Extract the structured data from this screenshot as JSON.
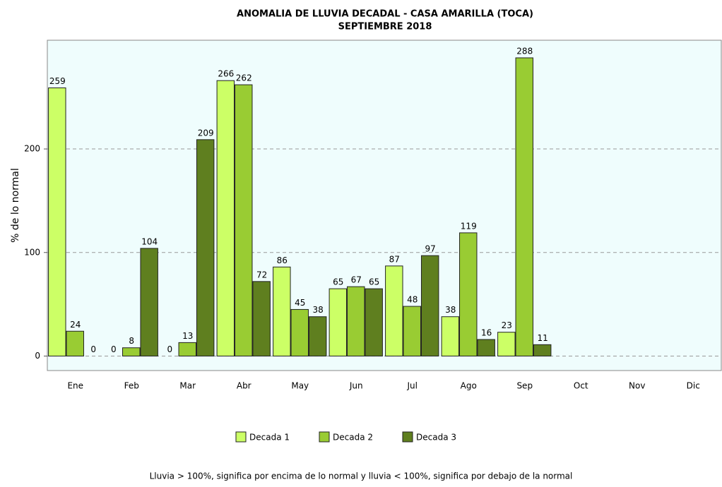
{
  "chart_data": {
    "type": "bar",
    "title": "ANOMALIA DE LLUVIA DECADAL - CASA AMARILLA (TOCA)",
    "subtitle": "SEPTIEMBRE 2018",
    "y_label": "% de lo normal",
    "note": "Lluvia > 100%, significa por encima de lo normal y lluvia < 100%, significa por debajo de la normal",
    "categories": [
      "Ene",
      "Feb",
      "Mar",
      "Abr",
      "May",
      "Jun",
      "Jul",
      "Ago",
      "Sep",
      "Oct",
      "Nov",
      "Dic"
    ],
    "series": [
      {
        "name": "Decada 1",
        "color": "#ccff66",
        "values": [
          259,
          0,
          0,
          266,
          86,
          65,
          87,
          38,
          23,
          null,
          null,
          null
        ]
      },
      {
        "name": "Decada 2",
        "color": "#99cc33",
        "values": [
          24,
          8,
          13,
          262,
          45,
          67,
          48,
          119,
          288,
          null,
          null,
          null
        ]
      },
      {
        "name": "Decada 3",
        "color": "#5f7f1f",
        "values": [
          0,
          104,
          209,
          72,
          38,
          65,
          97,
          16,
          11,
          null,
          null,
          null
        ]
      }
    ],
    "ylim": [
      -14,
      305
    ],
    "yticks": [
      0,
      100,
      200
    ],
    "grid": true,
    "legend": "bottom"
  }
}
